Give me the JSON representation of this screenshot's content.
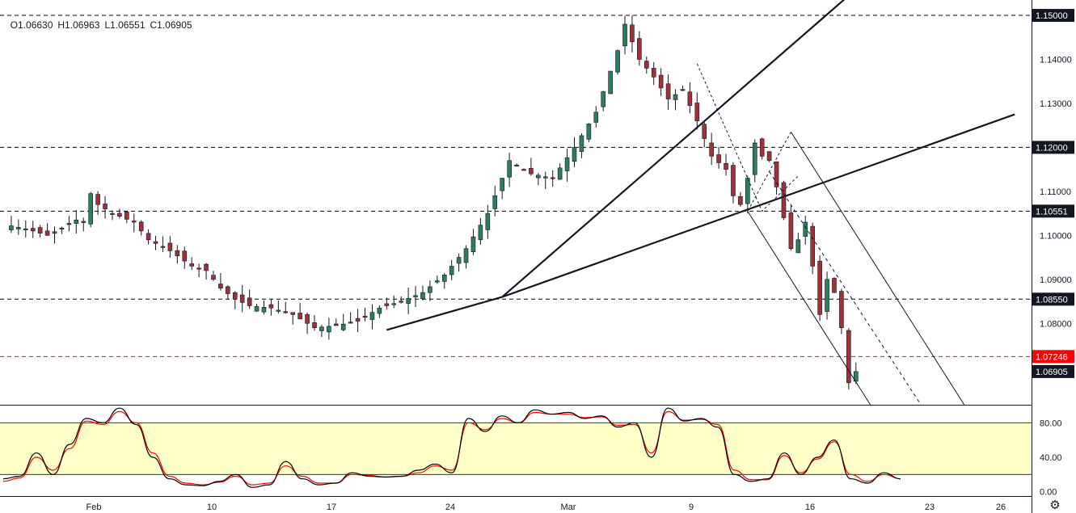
{
  "symbol_info": {
    "open": "O1.06630",
    "high": "H1.06963",
    "low": "L1.06551",
    "close": "C1.06905"
  },
  "colors": {
    "up": "#26a69a",
    "down": "#ef5350",
    "up_body": "#2e7d5b",
    "down_body": "#a0303a",
    "stoch_k": "#000000",
    "stoch_d": "#ff0000",
    "band_fill": "#ffffc8",
    "price_label_bg": "#131722",
    "alert_label_bg": "#ff0000"
  },
  "chart_data": [
    {
      "type": "candlestick",
      "title": "",
      "x_ticks": [
        "Feb",
        "10",
        "17",
        "24",
        "Mar",
        "9",
        "16",
        "23",
        "26"
      ],
      "y_ticks": [
        "1.15000",
        "1.14000",
        "1.13000",
        "1.12000",
        "1.11000",
        "1.10000",
        "1.09000",
        "1.08000",
        "1.06905"
      ],
      "price_labels": [
        "1.15000",
        "1.12000",
        "1.10551",
        "1.08550",
        "1.07246",
        "1.06905"
      ],
      "alert_line": "1.07246",
      "last_price": "1.06905",
      "ylim": [
        1.0615,
        1.1535
      ],
      "horizontal_lines": [
        1.15,
        1.12,
        1.10551,
        1.0855
      ],
      "price_path": [
        [
          0,
          1.1025
        ],
        [
          3,
          1.1015
        ],
        [
          6,
          1.1
        ],
        [
          9,
          1.1025
        ],
        [
          10,
          1.1035
        ],
        [
          11,
          1.103
        ],
        [
          12,
          1.1095
        ],
        [
          13,
          1.107
        ],
        [
          15,
          1.105
        ],
        [
          18,
          1.103
        ],
        [
          20,
          1.099
        ],
        [
          23,
          1.0965
        ],
        [
          26,
          1.093
        ],
        [
          28,
          1.092
        ],
        [
          30,
          1.088
        ],
        [
          32,
          1.0855
        ],
        [
          34,
          1.084
        ],
        [
          37,
          1.0835
        ],
        [
          40,
          1.082
        ],
        [
          43,
          1.079
        ],
        [
          46,
          1.0795
        ],
        [
          49,
          1.0805
        ],
        [
          52,
          1.0835
        ],
        [
          55,
          1.085
        ],
        [
          58,
          1.087
        ],
        [
          61,
          1.091
        ],
        [
          64,
          1.097
        ],
        [
          67,
          1.105
        ],
        [
          70,
          1.117
        ],
        [
          73,
          1.114
        ],
        [
          76,
          1.113
        ],
        [
          79,
          1.12
        ],
        [
          82,
          1.128
        ],
        [
          85,
          1.142
        ],
        [
          86,
          1.148
        ],
        [
          88,
          1.14
        ],
        [
          90,
          1.136
        ],
        [
          92,
          1.131
        ],
        [
          94,
          1.133
        ],
        [
          96,
          1.126
        ],
        [
          98,
          1.118
        ],
        [
          100,
          1.115
        ],
        [
          101,
          1.109
        ],
        [
          102,
          1.107
        ],
        [
          103,
          1.113
        ],
        [
          104,
          1.121
        ],
        [
          105,
          1.118
        ],
        [
          106,
          1.117
        ],
        [
          107,
          1.111
        ],
        [
          108,
          1.104
        ],
        [
          109,
          1.097
        ],
        [
          110,
          1.099
        ],
        [
          111,
          1.103
        ],
        [
          112,
          1.093
        ],
        [
          113,
          1.082
        ],
        [
          114,
          1.09
        ],
        [
          115,
          1.087
        ],
        [
          116,
          1.079
        ],
        [
          117,
          1.0665
        ],
        [
          118,
          1.06905
        ]
      ],
      "trendlines": [
        {
          "from": [
            53,
            1.0785
          ],
          "to": [
            69,
            1.086
          ],
          "style": "solid"
        },
        {
          "from": [
            69,
            1.086
          ],
          "to": [
            117,
            1.1545
          ],
          "style": "solid"
        },
        {
          "from": [
            69,
            1.086
          ],
          "to": [
            140,
            1.1275
          ],
          "style": "solid"
        }
      ],
      "channel": {
        "lower": [
          [
            103,
            1.1055
          ],
          [
            120,
            1.0615
          ]
        ],
        "upper": [
          [
            109,
            1.1235
          ],
          [
            133,
            1.0615
          ]
        ],
        "middle": [
          [
            106,
            1.1145
          ],
          [
            127,
            1.0615
          ]
        ]
      },
      "second_channel_dashes": [
        [
          96,
          1.139
        ],
        [
          105,
          1.1055
        ],
        [
          110,
          1.1135
        ]
      ]
    },
    {
      "type": "line",
      "title": "",
      "x_ticks": [
        "Feb",
        "10",
        "17",
        "24",
        "Mar",
        "9",
        "16",
        "23",
        "26"
      ],
      "y_ticks": [
        "80.00",
        "40.00",
        "0.00"
      ],
      "ylim": [
        -5,
        100
      ],
      "bands": [
        20,
        80
      ],
      "series": [
        {
          "values": [
            15,
            18,
            45,
            20,
            55,
            85,
            80,
            97,
            78,
            40,
            15,
            8,
            7,
            12,
            20,
            5,
            8,
            35,
            15,
            8,
            10,
            22,
            18,
            17,
            18,
            25,
            32,
            22,
            85,
            70,
            88,
            80,
            95,
            90,
            92,
            85,
            88,
            75,
            80,
            40,
            97,
            82,
            85,
            75,
            20,
            12,
            15,
            45,
            20,
            40,
            60,
            15,
            10,
            22,
            15
          ]
        },
        {
          "values": [
            12,
            16,
            40,
            25,
            50,
            82,
            78,
            93,
            80,
            45,
            18,
            10,
            8,
            11,
            18,
            8,
            10,
            30,
            18,
            10,
            10,
            20,
            19,
            17,
            18,
            22,
            30,
            25,
            80,
            72,
            85,
            80,
            92,
            90,
            90,
            86,
            87,
            77,
            78,
            45,
            93,
            83,
            84,
            78,
            25,
            14,
            14,
            42,
            22,
            38,
            58,
            20,
            12,
            20,
            15
          ]
        }
      ]
    }
  ]
}
